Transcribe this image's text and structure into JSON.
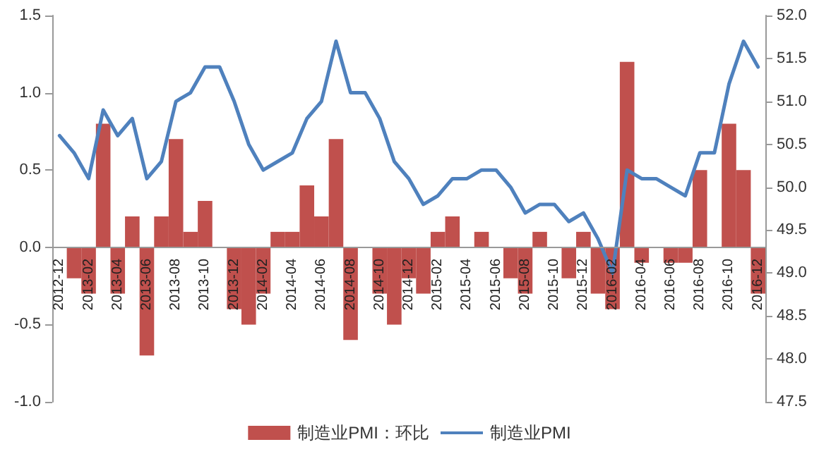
{
  "chart_data": {
    "type": "bar",
    "categories": [
      "2012-12",
      null,
      "2013-02",
      null,
      "2013-04",
      null,
      "2013-06",
      null,
      "2013-08",
      null,
      "2013-10",
      null,
      "2013-12",
      null,
      "2014-02",
      null,
      "2014-04",
      null,
      "2014-06",
      null,
      "2014-08",
      null,
      "2014-10",
      null,
      "2014-12",
      null,
      "2015-02",
      null,
      "2015-04",
      null,
      "2015-06",
      null,
      "2015-08",
      null,
      "2015-10",
      null,
      "2015-12",
      null,
      "2016-02",
      null,
      "2016-04",
      null,
      "2016-06",
      null,
      "2016-08",
      null,
      "2016-10",
      null,
      "2016-12"
    ],
    "series": [
      {
        "name": "制造业PMI：环比",
        "color": "#c0504d",
        "values": [
          0,
          -0.2,
          -0.3,
          0.8,
          -0.3,
          0.2,
          -0.7,
          0.2,
          0.7,
          0.1,
          0.3,
          0,
          -0.4,
          -0.5,
          -0.3,
          0.1,
          0.1,
          0.4,
          0.2,
          0.7,
          -0.6,
          0,
          -0.3,
          -0.5,
          -0.2,
          -0.3,
          0.1,
          0.2,
          0,
          0.1,
          0,
          -0.2,
          -0.3,
          0.1,
          0,
          -0.2,
          0.1,
          -0.3,
          -0.4,
          1.2,
          -0.1,
          0,
          -0.1,
          -0.1,
          0.5,
          0,
          0.8,
          0.5,
          -0.3
        ]
      },
      {
        "name": "制造业PMI",
        "type": "line",
        "axis": "y2",
        "color": "#4f81bd",
        "values": [
          50.6,
          50.4,
          50.1,
          50.9,
          50.6,
          50.8,
          50.1,
          50.3,
          51.0,
          51.1,
          51.4,
          51.4,
          51.0,
          50.5,
          50.2,
          50.3,
          50.4,
          50.8,
          51.0,
          51.7,
          51.1,
          51.1,
          50.8,
          50.3,
          50.1,
          49.8,
          49.9,
          50.1,
          50.1,
          50.2,
          50.2,
          50.0,
          49.7,
          49.8,
          49.8,
          49.6,
          49.7,
          49.4,
          49.0,
          50.2,
          50.1,
          50.1,
          50.0,
          49.9,
          50.4,
          50.4,
          51.2,
          51.7,
          51.4
        ]
      }
    ],
    "ylim": [
      -1,
      1.5
    ],
    "yticks": [
      {
        "value": -1,
        "label": "-1.0"
      },
      -0.5,
      {
        "value": 0,
        "label": "0.0"
      },
      0.5,
      {
        "value": 1,
        "label": "1.0"
      },
      1.5
    ],
    "y2lim": [
      47.5,
      52
    ],
    "y2ticks": [
      47.5,
      {
        "value": 48,
        "label": "48.0"
      },
      48.5,
      {
        "value": 49,
        "label": "49.0"
      },
      49.5,
      {
        "value": 50,
        "label": "50.0"
      },
      50.5,
      {
        "value": 51,
        "label": "51.0"
      },
      51.5,
      {
        "value": 52,
        "label": "52.0"
      }
    ],
    "grid": false,
    "legend": "bottom",
    "marker": "none",
    "line_style": "solid"
  }
}
